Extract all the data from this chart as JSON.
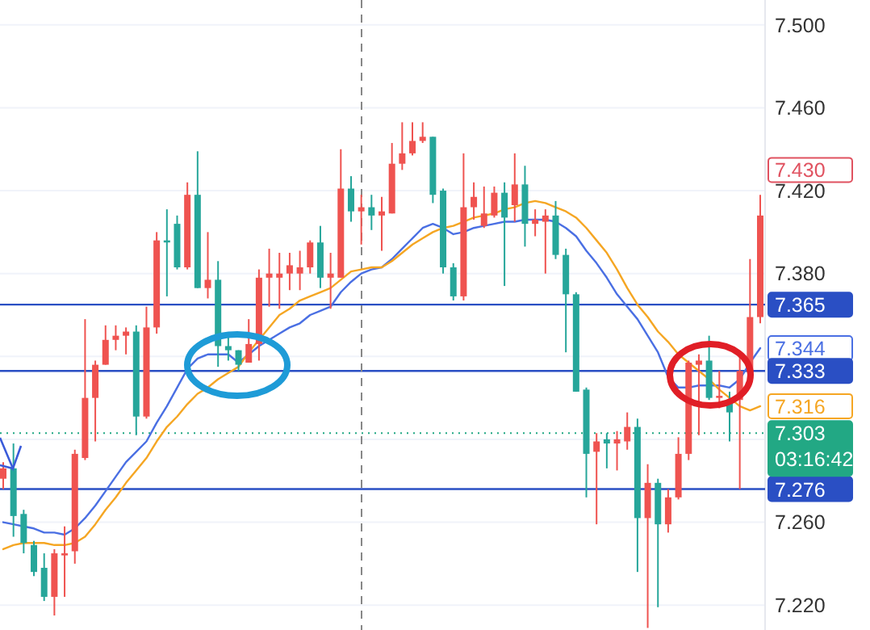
{
  "chart_data": {
    "type": "candlestick",
    "categories": [
      null,
      null,
      null,
      null,
      null,
      null,
      null,
      null,
      null,
      null,
      null,
      null,
      null,
      null,
      null,
      null,
      null,
      null,
      null,
      null,
      null,
      null,
      null,
      null,
      null,
      null,
      null,
      null,
      null,
      null,
      null,
      null,
      null,
      null,
      null,
      null,
      null,
      null,
      null,
      null,
      null,
      null,
      null,
      null,
      null,
      null,
      null,
      null,
      null,
      null,
      null,
      null,
      null,
      null,
      null,
      null,
      null,
      null,
      null,
      null,
      null,
      null,
      null,
      null,
      null,
      null,
      null,
      null,
      null,
      null,
      null,
      null,
      null,
      null,
      null
    ],
    "ohlc": [
      [
        7.281,
        7.289,
        7.276,
        7.286
      ],
      [
        7.286,
        7.298,
        7.253,
        7.263
      ],
      [
        7.264,
        7.266,
        7.245,
        7.25
      ],
      [
        7.249,
        7.251,
        7.234,
        7.236
      ],
      [
        7.238,
        7.245,
        7.222,
        7.224
      ],
      [
        7.224,
        7.247,
        7.215,
        7.245
      ],
      [
        7.244,
        7.258,
        7.224,
        7.245
      ],
      [
        7.246,
        7.295,
        7.24,
        7.293
      ],
      [
        7.291,
        7.358,
        7.29,
        7.32
      ],
      [
        7.32,
        7.338,
        7.299,
        7.336
      ],
      [
        7.336,
        7.355,
        7.336,
        7.348
      ],
      [
        7.348,
        7.355,
        7.343,
        7.35
      ],
      [
        7.35,
        7.354,
        7.341,
        7.352
      ],
      [
        7.352,
        7.355,
        7.302,
        7.311
      ],
      [
        7.311,
        7.364,
        7.31,
        7.354
      ],
      [
        7.354,
        7.4,
        7.351,
        7.396
      ],
      [
        7.396,
        7.411,
        7.369,
        7.395
      ],
      [
        7.404,
        7.408,
        7.382,
        7.383
      ],
      [
        7.383,
        7.424,
        7.382,
        7.418
      ],
      [
        7.418,
        7.439,
        7.373,
        7.373
      ],
      [
        7.373,
        7.4,
        7.368,
        7.377
      ],
      [
        7.377,
        7.386,
        7.335,
        7.345
      ],
      [
        7.345,
        7.351,
        7.338,
        7.343
      ],
      [
        7.343,
        7.343,
        7.333,
        7.336
      ],
      [
        7.337,
        7.358,
        7.337,
        7.346
      ],
      [
        7.346,
        7.382,
        7.338,
        7.378
      ],
      [
        7.378,
        7.392,
        7.364,
        7.38
      ],
      [
        7.378,
        7.39,
        7.363,
        7.38
      ],
      [
        7.38,
        7.39,
        7.372,
        7.384
      ],
      [
        7.38,
        7.391,
        7.372,
        7.383
      ],
      [
        7.383,
        7.396,
        7.38,
        7.395
      ],
      [
        7.395,
        7.403,
        7.373,
        7.378
      ],
      [
        7.378,
        7.39,
        7.363,
        7.38
      ],
      [
        7.378,
        7.44,
        7.378,
        7.421
      ],
      [
        7.421,
        7.427,
        7.405,
        7.41
      ],
      [
        7.41,
        7.418,
        7.394,
        7.412
      ],
      [
        7.412,
        7.418,
        7.401,
        7.408
      ],
      [
        7.408,
        7.417,
        7.391,
        7.41
      ],
      [
        7.409,
        7.443,
        7.409,
        7.433
      ],
      [
        7.433,
        7.453,
        7.43,
        7.438
      ],
      [
        7.438,
        7.453,
        7.437,
        7.444
      ],
      [
        7.444,
        7.453,
        7.443,
        7.446
      ],
      [
        7.446,
        7.446,
        7.414,
        7.418
      ],
      [
        7.42,
        7.421,
        7.38,
        7.383
      ],
      [
        7.383,
        7.385,
        7.367,
        7.369
      ],
      [
        7.369,
        7.438,
        7.367,
        7.412
      ],
      [
        7.412,
        7.424,
        7.406,
        7.417
      ],
      [
        7.403,
        7.422,
        7.402,
        7.409
      ],
      [
        7.408,
        7.422,
        7.407,
        7.419
      ],
      [
        7.419,
        7.424,
        7.374,
        7.407
      ],
      [
        7.413,
        7.438,
        7.405,
        7.423
      ],
      [
        7.423,
        7.432,
        7.393,
        7.404
      ],
      [
        7.404,
        7.411,
        7.398,
        7.406
      ],
      [
        7.405,
        7.411,
        7.38,
        7.408
      ],
      [
        7.408,
        7.415,
        7.387,
        7.389
      ],
      [
        7.389,
        7.392,
        7.342,
        7.37
      ],
      [
        7.37,
        7.371,
        7.323,
        7.323
      ],
      [
        7.324,
        7.325,
        7.272,
        7.293
      ],
      [
        7.294,
        7.303,
        7.259,
        7.299
      ],
      [
        7.3,
        7.303,
        7.286,
        7.298
      ],
      [
        7.298,
        7.304,
        7.285,
        7.3
      ],
      [
        7.299,
        7.313,
        7.295,
        7.306
      ],
      [
        7.306,
        7.31,
        7.236,
        7.262
      ],
      [
        7.262,
        7.288,
        7.209,
        7.279
      ],
      [
        7.279,
        7.281,
        7.219,
        7.259
      ],
      [
        7.259,
        7.276,
        7.255,
        7.272
      ],
      [
        7.272,
        7.301,
        7.271,
        7.293
      ],
      [
        7.293,
        7.338,
        7.29,
        7.337
      ],
      [
        7.336,
        7.341,
        7.302,
        7.338
      ],
      [
        7.338,
        7.35,
        7.319,
        7.32
      ],
      [
        7.32,
        7.333,
        7.315,
        7.321
      ],
      [
        7.319,
        7.323,
        7.299,
        7.313
      ],
      [
        7.319,
        7.341,
        7.276,
        7.333
      ],
      [
        7.333,
        7.387,
        7.332,
        7.359
      ],
      [
        7.359,
        7.418,
        7.356,
        7.408
      ]
    ],
    "colors": [
      "#ef5350",
      "#26a69a",
      "#26a69a",
      "#26a69a",
      "#26a69a",
      "#ef5350",
      "#ef5350",
      "#ef5350",
      "#ef5350",
      "#ef5350",
      "#ef5350",
      "#ef5350",
      "#ef5350",
      "#26a69a",
      "#ef5350",
      "#ef5350",
      "#26a69a",
      "#26a69a",
      "#ef5350",
      "#26a69a",
      "#ef5350",
      "#26a69a",
      "#26a69a",
      "#26a69a",
      "#ef5350",
      "#ef5350",
      "#ef5350",
      "#ef5350",
      "#ef5350",
      "#ef5350",
      "#ef5350",
      "#26a69a",
      "#ef5350",
      "#ef5350",
      "#26a69a",
      "#ef5350",
      "#26a69a",
      "#ef5350",
      "#ef5350",
      "#ef5350",
      "#ef5350",
      "#ef5350",
      "#26a69a",
      "#26a69a",
      "#26a69a",
      "#ef5350",
      "#ef5350",
      "#ef5350",
      "#ef5350",
      "#26a69a",
      "#ef5350",
      "#26a69a",
      "#ef5350",
      "#ef5350",
      "#26a69a",
      "#26a69a",
      "#26a69a",
      "#26a69a",
      "#ef5350",
      "#26a69a",
      "#ef5350",
      "#ef5350",
      "#26a69a",
      "#ef5350",
      "#26a69a",
      "#ef5350",
      "#ef5350",
      "#ef5350",
      "#ef5350",
      "#26a69a",
      "#ef5350",
      "#26a69a",
      "#ef5350",
      "#ef5350",
      "#ef5350"
    ],
    "series": [
      {
        "type": "line",
        "color": "#4a6fe3",
        "values": [
          7.26,
          7.259,
          7.258,
          7.257,
          7.255,
          7.255,
          7.254,
          7.257,
          7.262,
          7.268,
          7.275,
          7.282,
          7.289,
          7.294,
          7.299,
          7.308,
          7.316,
          7.325,
          7.334,
          7.339,
          7.341,
          7.341,
          7.341,
          7.337,
          7.341,
          7.345,
          7.348,
          7.351,
          7.354,
          7.356,
          7.36,
          7.362,
          7.364,
          7.371,
          7.376,
          7.38,
          7.382,
          7.383,
          7.387,
          7.392,
          7.397,
          7.402,
          7.404,
          7.402,
          7.399,
          7.4,
          7.402,
          7.403,
          7.404,
          7.405,
          7.405,
          7.406,
          7.406,
          7.406,
          7.405,
          7.402,
          7.398,
          7.391,
          7.385,
          7.378,
          7.37,
          7.364,
          7.358,
          7.35,
          7.342,
          7.33,
          7.325,
          7.325,
          7.326,
          7.326,
          7.326,
          7.325,
          7.329,
          7.337,
          7.344
        ],
        "value_labels": [
          null,
          null,
          null,
          null,
          null,
          null,
          null,
          null,
          null,
          null,
          null,
          null,
          null,
          null,
          null,
          null,
          null,
          null,
          null,
          null,
          null,
          null,
          null,
          null,
          null,
          null,
          null,
          null,
          null,
          null,
          null,
          null,
          null,
          null,
          null,
          null,
          null,
          null,
          null,
          null,
          null,
          null,
          null,
          null,
          null,
          null,
          null,
          null,
          null,
          null,
          null,
          null,
          null,
          null,
          null,
          null,
          null,
          null,
          null,
          null,
          null,
          null,
          null,
          null,
          null,
          null,
          null,
          null,
          null,
          null,
          null,
          null,
          null,
          null,
          "7.344"
        ]
      },
      {
        "type": "line",
        "color": "#f5a623",
        "values": [
          7.247,
          7.249,
          7.25,
          7.25,
          7.25,
          7.249,
          7.249,
          7.25,
          7.253,
          7.259,
          7.266,
          7.272,
          7.279,
          7.285,
          7.291,
          7.299,
          7.306,
          7.311,
          7.317,
          7.322,
          7.325,
          7.329,
          7.332,
          7.335,
          7.342,
          7.348,
          7.354,
          7.36,
          7.363,
          7.367,
          7.369,
          7.371,
          7.373,
          7.377,
          7.381,
          7.382,
          7.383,
          7.383,
          7.386,
          7.39,
          7.394,
          7.397,
          7.4,
          7.402,
          7.403,
          7.405,
          7.407,
          7.408,
          7.409,
          7.411,
          7.412,
          7.414,
          7.415,
          7.414,
          7.412,
          7.41,
          7.407,
          7.402,
          7.396,
          7.39,
          7.382,
          7.373,
          7.365,
          7.359,
          7.352,
          7.347,
          7.341,
          7.337,
          7.333,
          7.329,
          7.324,
          7.32,
          7.316,
          7.314,
          7.316
        ],
        "value_labels": [
          null,
          null,
          null,
          null,
          null,
          null,
          null,
          null,
          null,
          null,
          null,
          null,
          null,
          null,
          null,
          null,
          null,
          null,
          null,
          null,
          null,
          null,
          null,
          null,
          null,
          null,
          null,
          null,
          null,
          null,
          null,
          null,
          null,
          null,
          null,
          null,
          null,
          null,
          null,
          null,
          null,
          null,
          null,
          null,
          null,
          null,
          null,
          null,
          null,
          null,
          null,
          null,
          null,
          null,
          null,
          null,
          null,
          null,
          null,
          null,
          null,
          null,
          null,
          null,
          null,
          null,
          null,
          null,
          null,
          null,
          null,
          null,
          null,
          null,
          "7.316"
        ]
      }
    ],
    "ylim": [
      7.208,
      7.512
    ],
    "yticks": [
      {
        "value": 7.22,
        "label": "7.220"
      },
      {
        "value": 7.26,
        "label": "7.260"
      },
      {
        "value": 7.3,
        "label": null
      },
      {
        "value": 7.34,
        "label": null
      },
      {
        "value": 7.38,
        "label": "7.380"
      },
      {
        "value": 7.42,
        "label": "7.420"
      },
      {
        "value": 7.46,
        "label": "7.460"
      },
      {
        "value": 7.5,
        "label": "7.500"
      }
    ],
    "grid": "y",
    "ref_lines": [
      {
        "axis": "y",
        "value": 7.365,
        "label": "7.365",
        "color": "#2a4fc4"
      },
      {
        "axis": "y",
        "value": 7.333,
        "label": "7.333",
        "color": "#2a4fc4"
      },
      {
        "axis": "y",
        "value": 7.276,
        "label": "7.276",
        "color": "#2a4fc4"
      },
      {
        "axis": "y",
        "value": 7.303,
        "label": "7.303\n03:16:42",
        "color": "#22a884",
        "line_style": "dotted"
      }
    ],
    "annotations": [
      "7.430"
    ]
  }
}
